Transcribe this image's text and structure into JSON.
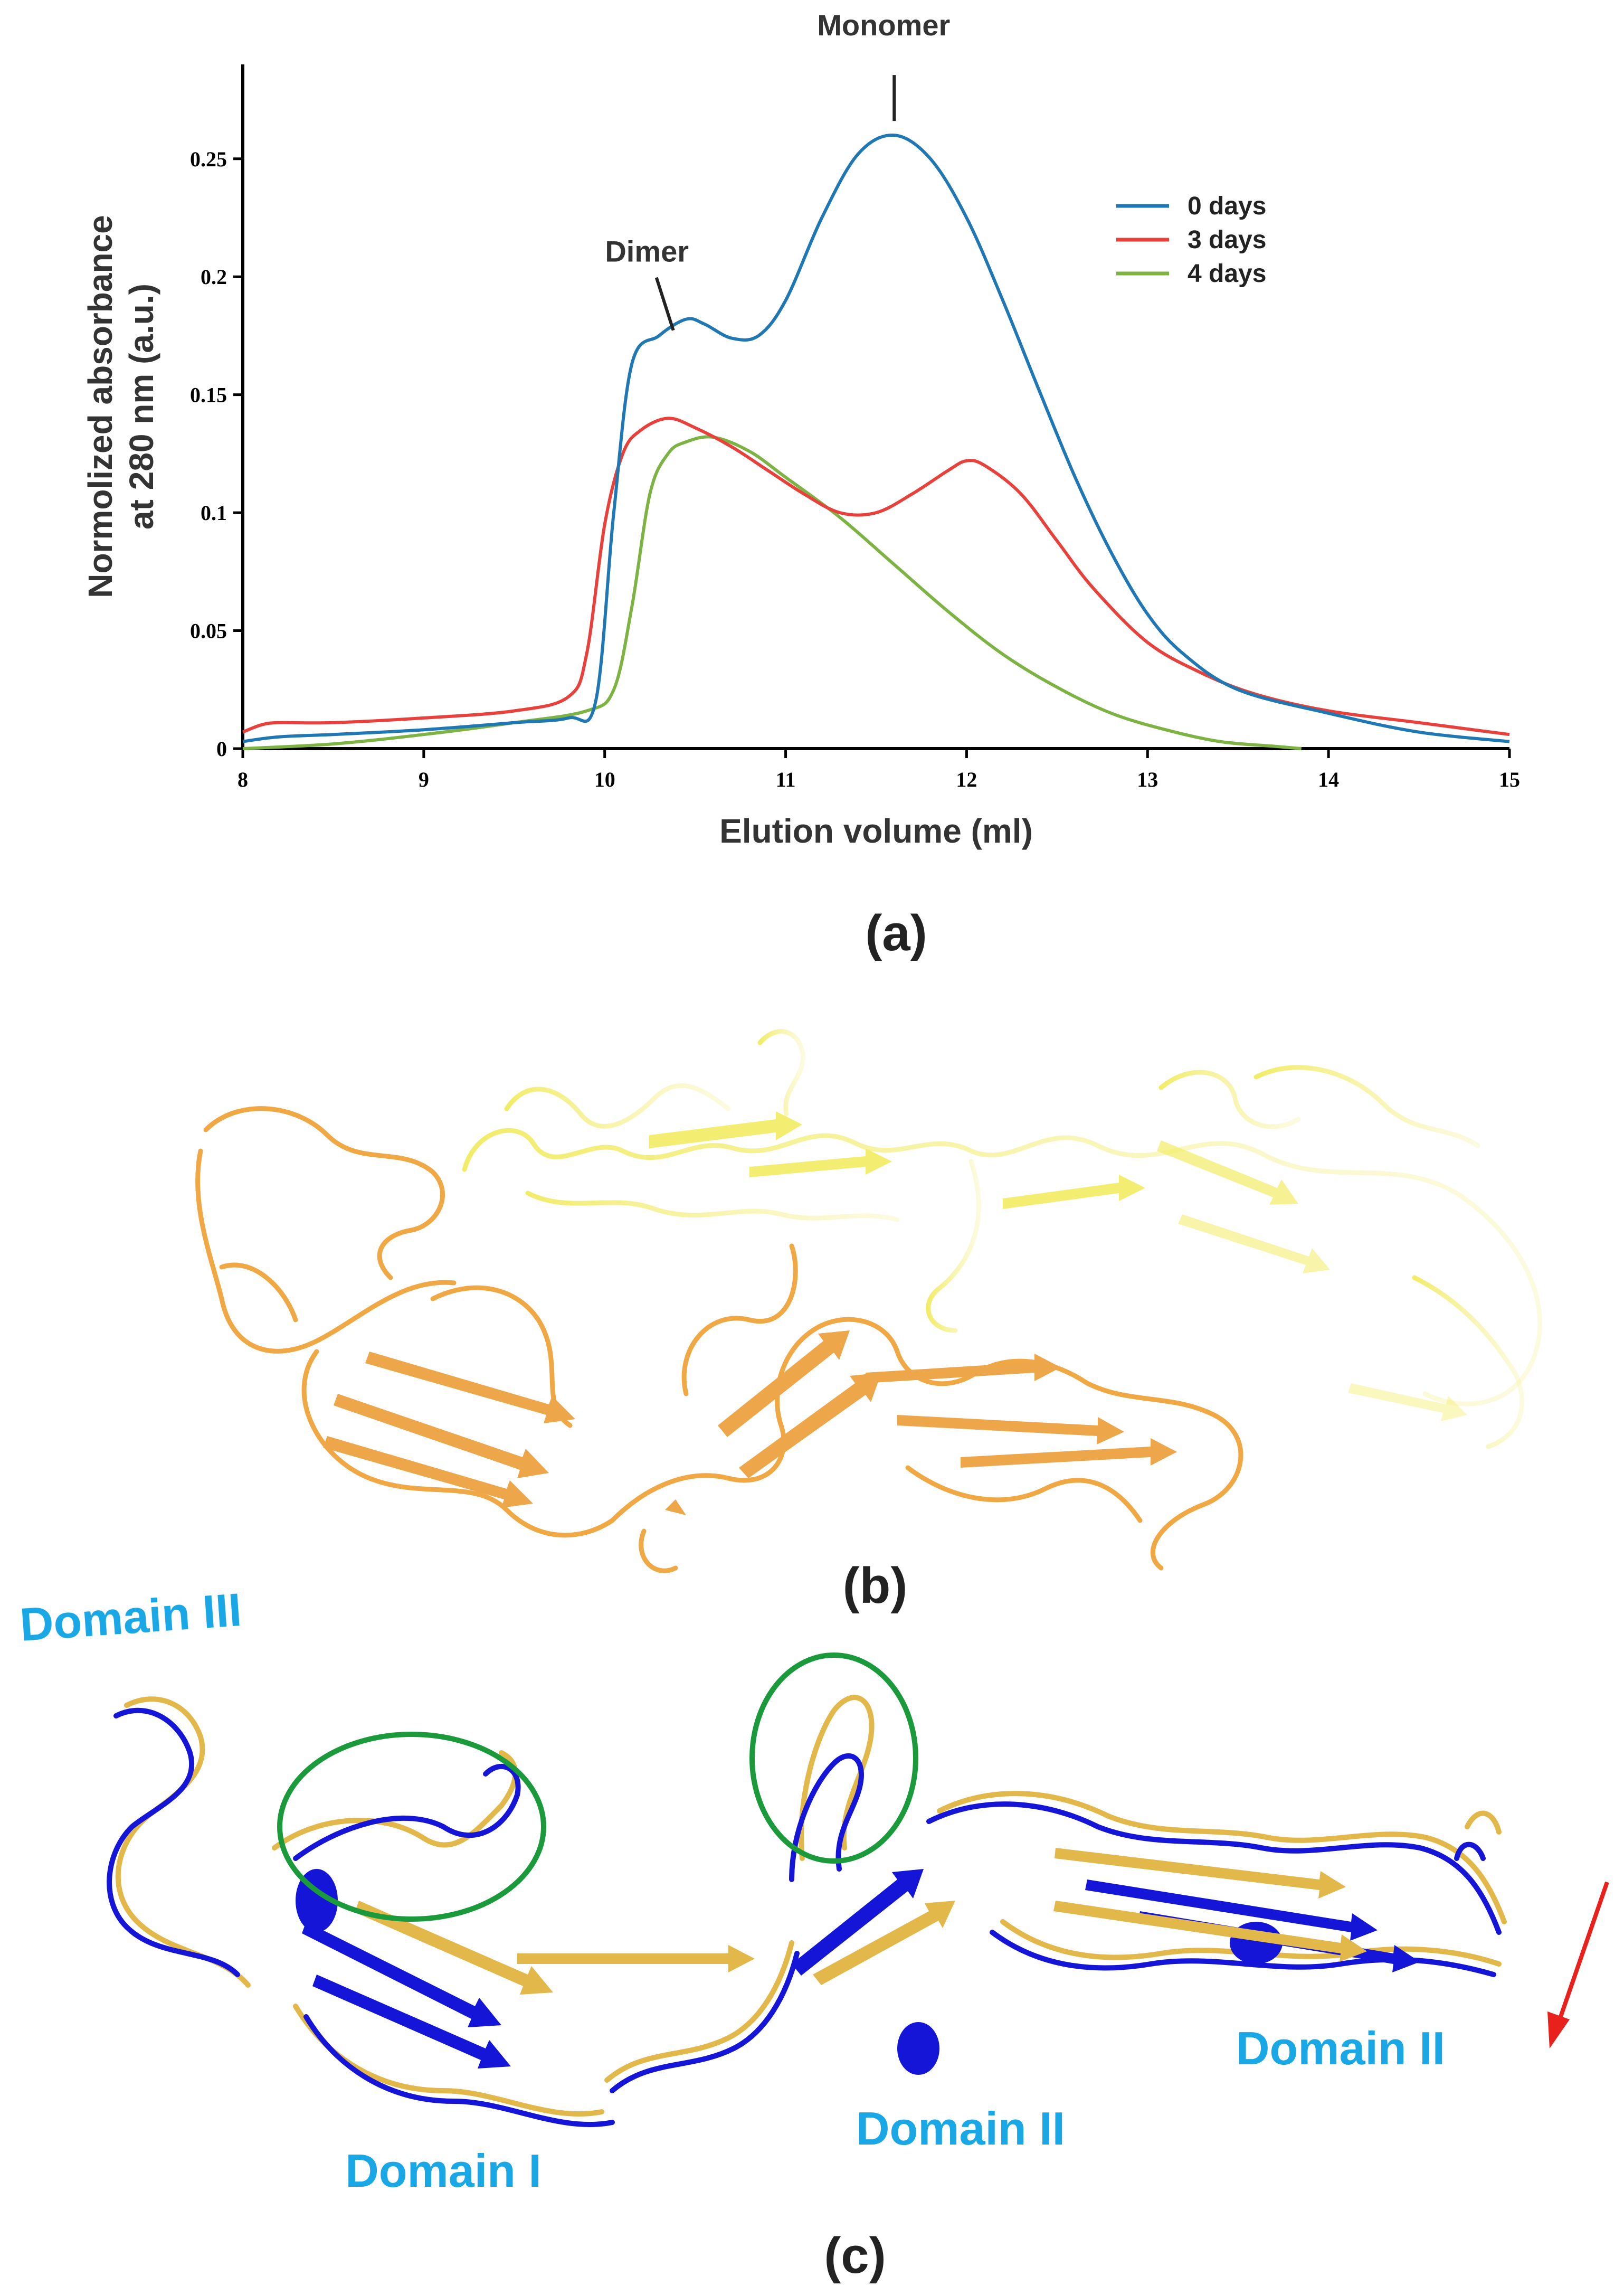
{
  "panels": {
    "a_label": "(a)",
    "b_label": "(b)",
    "c_label": "(c)"
  },
  "chart_data": {
    "type": "line",
    "xlabel": "Elution volume (ml)",
    "ylabel_line1": "Normolized absorbance",
    "ylabel_line2": "at 280 nm (a.u.)",
    "xlim": [
      8,
      15
    ],
    "ylim": [
      0,
      0.29
    ],
    "xticks": [
      8,
      9,
      10,
      11,
      12,
      13,
      14,
      15
    ],
    "yticks": [
      0,
      0.05,
      0.1,
      0.15,
      0.2,
      0.25
    ],
    "ytick_labels": [
      "0",
      "0.05",
      "0.1",
      "0.15",
      "0.2",
      "0.25"
    ],
    "grid": false,
    "legend_position": "top-right",
    "annotations": [
      {
        "text": "Monomer",
        "x": 11.6,
        "y": 0.262
      },
      {
        "text": "Dimer",
        "x": 10.35,
        "y": 0.184
      }
    ],
    "series": [
      {
        "name": "0 days",
        "color": "#1f77b4",
        "x": [
          8.0,
          8.2,
          8.5,
          9.0,
          9.5,
          9.8,
          9.95,
          10.05,
          10.15,
          10.3,
          10.45,
          10.55,
          10.7,
          10.85,
          11.0,
          11.2,
          11.4,
          11.6,
          11.8,
          12.0,
          12.2,
          12.4,
          12.6,
          12.8,
          13.0,
          13.2,
          13.5,
          14.0,
          14.5,
          15.0
        ],
        "y": [
          0.003,
          0.005,
          0.006,
          0.008,
          0.011,
          0.013,
          0.02,
          0.1,
          0.163,
          0.175,
          0.182,
          0.18,
          0.174,
          0.175,
          0.19,
          0.225,
          0.252,
          0.26,
          0.25,
          0.225,
          0.19,
          0.152,
          0.115,
          0.083,
          0.057,
          0.04,
          0.025,
          0.015,
          0.007,
          0.003
        ]
      },
      {
        "name": "3 days",
        "color": "#e8403a",
        "x": [
          8.0,
          8.1,
          8.2,
          8.5,
          9.0,
          9.5,
          9.8,
          9.9,
          10.0,
          10.1,
          10.2,
          10.35,
          10.5,
          10.7,
          10.9,
          11.1,
          11.3,
          11.5,
          11.7,
          11.9,
          12.0,
          12.1,
          12.3,
          12.5,
          12.7,
          13.0,
          13.3,
          13.6,
          14.0,
          14.5,
          15.0
        ],
        "y": [
          0.007,
          0.01,
          0.011,
          0.011,
          0.013,
          0.016,
          0.022,
          0.04,
          0.095,
          0.125,
          0.135,
          0.14,
          0.136,
          0.128,
          0.118,
          0.108,
          0.1,
          0.1,
          0.108,
          0.118,
          0.122,
          0.12,
          0.108,
          0.088,
          0.068,
          0.045,
          0.032,
          0.023,
          0.016,
          0.011,
          0.006
        ]
      },
      {
        "name": "4 days",
        "color": "#7cb342",
        "x": [
          8.0,
          8.5,
          9.0,
          9.5,
          9.9,
          10.05,
          10.15,
          10.25,
          10.35,
          10.45,
          10.6,
          10.8,
          11.0,
          11.3,
          11.6,
          11.9,
          12.2,
          12.5,
          12.8,
          13.1,
          13.4,
          13.7,
          13.85
        ],
        "y": [
          0.0,
          0.002,
          0.006,
          0.011,
          0.016,
          0.025,
          0.06,
          0.108,
          0.125,
          0.13,
          0.132,
          0.126,
          0.115,
          0.098,
          0.078,
          0.058,
          0.04,
          0.026,
          0.015,
          0.008,
          0.003,
          0.001,
          0.0
        ]
      }
    ]
  },
  "structure_b": {
    "colors": {
      "chain_orange": "#f0a845",
      "chain_yellow": "#f1ee5b"
    }
  },
  "structure_c": {
    "colors": {
      "blue": "#1515d8",
      "gold": "#e3b84a",
      "label": "#1aa7e6",
      "circle": "#1a9a3a",
      "arrow": "#e8211c"
    },
    "labels": {
      "domain3": "Domain III",
      "domain1": "Domain I",
      "domain2_mid": "Domain II",
      "domain2_right": "Domain II"
    }
  }
}
